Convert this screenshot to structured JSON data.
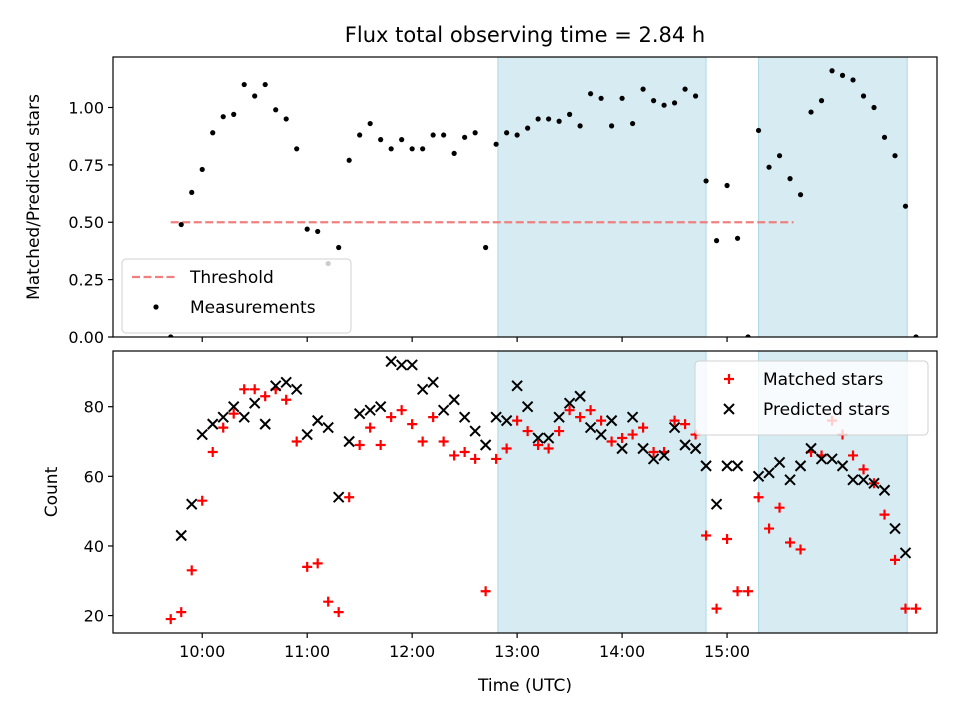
{
  "figure": {
    "title": "Flux total observing time = 2.84 h"
  },
  "chart_data": [
    {
      "type": "scatter",
      "ylabel": "Matched/Predicted stars",
      "ylim": [
        0,
        1.22
      ],
      "yticks": [
        0.0,
        0.25,
        0.5,
        0.75,
        1.0
      ],
      "ytick_labels": [
        "0.00",
        "0.25",
        "0.50",
        "0.75",
        "1.00"
      ],
      "threshold": {
        "name": "Threshold",
        "value": 0.5,
        "x_range": [
          "09:42",
          "15:38"
        ],
        "color": "#f08080",
        "style": "dashed"
      },
      "legend": {
        "placement": "lower-left",
        "entries": [
          "Threshold",
          "Measurements"
        ]
      },
      "series": [
        {
          "name": "Measurements",
          "color": "#000000",
          "marker": "dot",
          "points": [
            [
              "09:42",
              0.0
            ],
            [
              "09:48",
              0.49
            ],
            [
              "09:54",
              0.63
            ],
            [
              "10:00",
              0.73
            ],
            [
              "10:06",
              0.89
            ],
            [
              "10:12",
              0.96
            ],
            [
              "10:18",
              0.97
            ],
            [
              "10:24",
              1.1
            ],
            [
              "10:30",
              1.05
            ],
            [
              "10:36",
              1.1
            ],
            [
              "10:42",
              0.99
            ],
            [
              "10:48",
              0.95
            ],
            [
              "10:54",
              0.82
            ],
            [
              "11:00",
              0.47
            ],
            [
              "11:06",
              0.46
            ],
            [
              "11:12",
              0.32
            ],
            [
              "11:18",
              0.39
            ],
            [
              "11:24",
              0.77
            ],
            [
              "11:30",
              0.88
            ],
            [
              "11:36",
              0.93
            ],
            [
              "11:42",
              0.86
            ],
            [
              "11:48",
              0.82
            ],
            [
              "11:54",
              0.86
            ],
            [
              "12:00",
              0.82
            ],
            [
              "12:06",
              0.82
            ],
            [
              "12:12",
              0.88
            ],
            [
              "12:18",
              0.88
            ],
            [
              "12:24",
              0.8
            ],
            [
              "12:30",
              0.87
            ],
            [
              "12:36",
              0.89
            ],
            [
              "12:42",
              0.39
            ],
            [
              "12:48",
              0.84
            ],
            [
              "12:54",
              0.89
            ],
            [
              "13:00",
              0.88
            ],
            [
              "13:06",
              0.91
            ],
            [
              "13:12",
              0.95
            ],
            [
              "13:18",
              0.95
            ],
            [
              "13:24",
              0.94
            ],
            [
              "13:30",
              0.97
            ],
            [
              "13:36",
              0.92
            ],
            [
              "13:42",
              1.06
            ],
            [
              "13:48",
              1.04
            ],
            [
              "13:54",
              0.92
            ],
            [
              "14:00",
              1.04
            ],
            [
              "14:06",
              0.93
            ],
            [
              "14:12",
              1.08
            ],
            [
              "14:18",
              1.03
            ],
            [
              "14:24",
              1.01
            ],
            [
              "14:30",
              1.02
            ],
            [
              "14:36",
              1.08
            ],
            [
              "14:42",
              1.05
            ],
            [
              "14:48",
              0.68
            ],
            [
              "14:54",
              0.42
            ],
            [
              "15:00",
              0.66
            ],
            [
              "15:06",
              0.43
            ],
            [
              "15:12",
              0.0
            ],
            [
              "15:18",
              0.9
            ],
            [
              "15:24",
              0.74
            ],
            [
              "15:30",
              0.79
            ],
            [
              "15:36",
              0.69
            ],
            [
              "15:42",
              0.62
            ],
            [
              "15:48",
              0.98
            ],
            [
              "15:54",
              1.03
            ],
            [
              "16:00",
              1.16
            ],
            [
              "16:06",
              1.14
            ],
            [
              "16:12",
              1.12
            ],
            [
              "16:18",
              1.05
            ],
            [
              "16:24",
              1.0
            ],
            [
              "16:30",
              0.87
            ],
            [
              "16:36",
              0.79
            ],
            [
              "16:42",
              0.57
            ],
            [
              "16:48",
              0.0
            ]
          ]
        }
      ]
    },
    {
      "type": "scatter",
      "xlabel": "Time (UTC)",
      "ylabel": "Count",
      "ylim": [
        15,
        96
      ],
      "yticks": [
        20,
        40,
        60,
        80
      ],
      "ytick_labels": [
        "20",
        "40",
        "60",
        "80"
      ],
      "legend": {
        "placement": "upper-right",
        "entries": [
          "Matched stars",
          "Predicted stars"
        ]
      },
      "series": [
        {
          "name": "Matched stars",
          "color": "#ff0000",
          "marker": "plus",
          "points": [
            [
              "09:42",
              19
            ],
            [
              "09:48",
              21
            ],
            [
              "09:54",
              33
            ],
            [
              "10:00",
              53
            ],
            [
              "10:06",
              67
            ],
            [
              "10:12",
              74
            ],
            [
              "10:18",
              78
            ],
            [
              "10:24",
              85
            ],
            [
              "10:30",
              85
            ],
            [
              "10:36",
              83
            ],
            [
              "10:42",
              85
            ],
            [
              "10:48",
              82
            ],
            [
              "10:54",
              70
            ],
            [
              "11:00",
              34
            ],
            [
              "11:06",
              35
            ],
            [
              "11:12",
              24
            ],
            [
              "11:18",
              21
            ],
            [
              "11:24",
              54
            ],
            [
              "11:30",
              69
            ],
            [
              "11:36",
              74
            ],
            [
              "11:42",
              69
            ],
            [
              "11:48",
              77
            ],
            [
              "11:54",
              79
            ],
            [
              "12:00",
              75
            ],
            [
              "12:06",
              70
            ],
            [
              "12:12",
              77
            ],
            [
              "12:18",
              70
            ],
            [
              "12:24",
              66
            ],
            [
              "12:30",
              67
            ],
            [
              "12:36",
              65
            ],
            [
              "12:42",
              27
            ],
            [
              "12:48",
              65
            ],
            [
              "12:54",
              68
            ],
            [
              "13:00",
              76
            ],
            [
              "13:06",
              73
            ],
            [
              "13:12",
              69
            ],
            [
              "13:18",
              68
            ],
            [
              "13:24",
              73
            ],
            [
              "13:30",
              79
            ],
            [
              "13:36",
              77
            ],
            [
              "13:42",
              79
            ],
            [
              "13:48",
              76
            ],
            [
              "13:54",
              70
            ],
            [
              "14:00",
              71
            ],
            [
              "14:06",
              72
            ],
            [
              "14:12",
              74
            ],
            [
              "14:18",
              67
            ],
            [
              "14:24",
              67
            ],
            [
              "14:30",
              76
            ],
            [
              "14:36",
              75
            ],
            [
              "14:42",
              72
            ],
            [
              "14:48",
              43
            ],
            [
              "14:54",
              22
            ],
            [
              "15:00",
              42
            ],
            [
              "15:06",
              27
            ],
            [
              "15:12",
              27
            ],
            [
              "15:18",
              54
            ],
            [
              "15:24",
              45
            ],
            [
              "15:30",
              51
            ],
            [
              "15:36",
              41
            ],
            [
              "15:42",
              39
            ],
            [
              "15:48",
              67
            ],
            [
              "15:54",
              66
            ],
            [
              "16:00",
              76
            ],
            [
              "16:06",
              72
            ],
            [
              "16:12",
              66
            ],
            [
              "16:18",
              62
            ],
            [
              "16:24",
              58
            ],
            [
              "16:30",
              49
            ],
            [
              "16:36",
              36
            ],
            [
              "16:42",
              22
            ],
            [
              "16:48",
              22
            ]
          ]
        },
        {
          "name": "Predicted stars",
          "color": "#000000",
          "marker": "x",
          "points": [
            [
              "09:48",
              43
            ],
            [
              "09:54",
              52
            ],
            [
              "10:00",
              72
            ],
            [
              "10:06",
              75
            ],
            [
              "10:12",
              77
            ],
            [
              "10:18",
              80
            ],
            [
              "10:24",
              77
            ],
            [
              "10:30",
              81
            ],
            [
              "10:36",
              75
            ],
            [
              "10:42",
              86
            ],
            [
              "10:48",
              87
            ],
            [
              "10:54",
              85
            ],
            [
              "11:00",
              72
            ],
            [
              "11:06",
              76
            ],
            [
              "11:12",
              74
            ],
            [
              "11:18",
              54
            ],
            [
              "11:24",
              70
            ],
            [
              "11:30",
              78
            ],
            [
              "11:36",
              79
            ],
            [
              "11:42",
              80
            ],
            [
              "11:48",
              93
            ],
            [
              "11:54",
              92
            ],
            [
              "12:00",
              92
            ],
            [
              "12:06",
              85
            ],
            [
              "12:12",
              87
            ],
            [
              "12:18",
              79
            ],
            [
              "12:24",
              82
            ],
            [
              "12:30",
              77
            ],
            [
              "12:36",
              73
            ],
            [
              "12:42",
              69
            ],
            [
              "12:48",
              77
            ],
            [
              "12:54",
              76
            ],
            [
              "13:00",
              86
            ],
            [
              "13:06",
              80
            ],
            [
              "13:12",
              71
            ],
            [
              "13:18",
              71
            ],
            [
              "13:24",
              77
            ],
            [
              "13:30",
              81
            ],
            [
              "13:36",
              83
            ],
            [
              "13:42",
              74
            ],
            [
              "13:48",
              72
            ],
            [
              "13:54",
              76
            ],
            [
              "14:00",
              68
            ],
            [
              "14:06",
              77
            ],
            [
              "14:12",
              68
            ],
            [
              "14:18",
              65
            ],
            [
              "14:24",
              66
            ],
            [
              "14:30",
              74
            ],
            [
              "14:36",
              69
            ],
            [
              "14:42",
              68
            ],
            [
              "14:48",
              63
            ],
            [
              "14:54",
              52
            ],
            [
              "15:00",
              63
            ],
            [
              "15:06",
              63
            ],
            [
              "15:18",
              60
            ],
            [
              "15:24",
              61
            ],
            [
              "15:30",
              64
            ],
            [
              "15:36",
              59
            ],
            [
              "15:42",
              63
            ],
            [
              "15:48",
              68
            ],
            [
              "15:54",
              65
            ],
            [
              "16:00",
              65
            ],
            [
              "16:06",
              63
            ],
            [
              "16:12",
              59
            ],
            [
              "16:18",
              59
            ],
            [
              "16:24",
              58
            ],
            [
              "16:30",
              56
            ],
            [
              "16:36",
              45
            ],
            [
              "16:42",
              38
            ]
          ]
        }
      ]
    }
  ],
  "x_axis": {
    "xlim": [
      "09:09",
      "17:00"
    ],
    "ticks": [
      "10:00",
      "11:00",
      "12:00",
      "13:00",
      "14:00",
      "15:00"
    ],
    "tick_labels": [
      "10:00",
      "11:00",
      "12:00",
      "13:00",
      "14:00",
      "15:00"
    ]
  },
  "highlight_regions": [
    {
      "start": "12:49",
      "end": "14:48",
      "color": "#add8e6"
    },
    {
      "start": "15:18",
      "end": "16:43",
      "color": "#add8e6"
    }
  ]
}
